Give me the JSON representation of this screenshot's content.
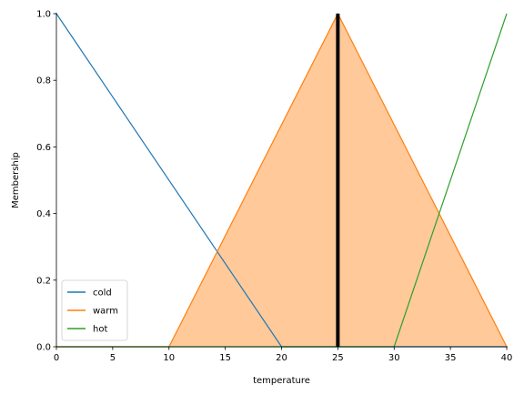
{
  "chart_data": {
    "type": "line",
    "xlabel": "temperature",
    "ylabel": "Membership",
    "xlim": [
      0,
      40
    ],
    "ylim": [
      0,
      1.0
    ],
    "x_ticks": [
      0,
      5,
      10,
      15,
      20,
      25,
      30,
      35,
      40
    ],
    "y_ticks": [
      0.0,
      0.2,
      0.4,
      0.6,
      0.8,
      1.0
    ],
    "y_tick_labels": [
      "0.0",
      "0.2",
      "0.4",
      "0.6",
      "0.8",
      "1.0"
    ],
    "grid": false,
    "legend_position": "lower-left",
    "series": [
      {
        "name": "cold",
        "color": "#1f77b4",
        "x": [
          0,
          20,
          40
        ],
        "y": [
          1,
          0,
          0
        ]
      },
      {
        "name": "warm",
        "color": "#ff7f0e",
        "x": [
          0,
          10,
          25,
          40
        ],
        "y": [
          0,
          0,
          1,
          0
        ]
      },
      {
        "name": "hot",
        "color": "#2ca02c",
        "x": [
          0,
          30,
          40
        ],
        "y": [
          0,
          0,
          1
        ]
      }
    ],
    "activation": {
      "series": "warm",
      "fill_color": "#ffc999",
      "x": [
        10,
        25,
        40
      ],
      "y": [
        0,
        1,
        0
      ]
    },
    "crisp_output": {
      "x": 25,
      "ymin": 0,
      "ymax": 1,
      "color": "#000000"
    }
  }
}
